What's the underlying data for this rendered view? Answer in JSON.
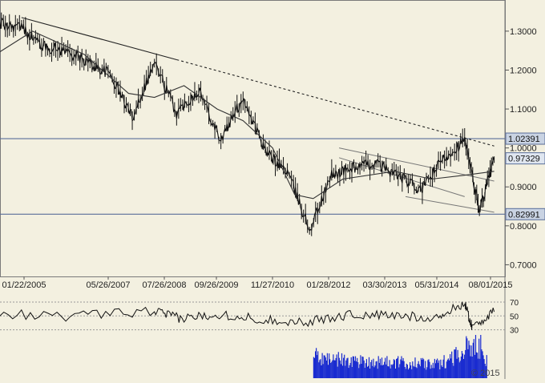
{
  "chart_data": {
    "type": "line",
    "main_panel": {
      "series": [
        {
          "x": [
            "2004-01",
            "2004-07",
            "2005-01",
            "2005-07",
            "2006-01",
            "2006-07",
            "2007-01",
            "2007-07",
            "2008-01",
            "2008-07",
            "2009-01",
            "2009-07",
            "2010-01",
            "2010-07",
            "2011-01",
            "2011-07",
            "2012-01",
            "2012-07",
            "2013-01",
            "2013-07",
            "2014-01",
            "2014-07",
            "2015-01",
            "2015-05",
            "2015-09"
          ],
          "y": [
            1.23,
            1.32,
            1.31,
            1.26,
            1.25,
            1.22,
            1.19,
            1.08,
            1.22,
            1.09,
            1.15,
            1.02,
            1.13,
            0.99,
            0.94,
            0.79,
            0.93,
            0.95,
            0.96,
            0.93,
            0.89,
            0.97,
            1.02,
            0.84,
            0.97
          ]
        },
        {
          "x": [
            "2004-06",
            "2005-04",
            "2006-06",
            "2007-06",
            "2008-01",
            "2008-09",
            "2009-06",
            "2010-01",
            "2010-09",
            "2011-03",
            "2011-08",
            "2012-04",
            "2013-06",
            "2014-04",
            "2015-01",
            "2015-09"
          ],
          "y": [
            1.24,
            1.3,
            1.24,
            1.14,
            1.13,
            1.16,
            1.1,
            1.07,
            1.0,
            0.88,
            0.87,
            0.92,
            0.94,
            0.92,
            0.93,
            0.94
          ]
        }
      ],
      "y_ticks": [
        "1.3000",
        "1.2000",
        "1.1000",
        "1.0000",
        "0.9000",
        "0.8000",
        "0.7000"
      ],
      "x_tick_labels": [
        "01/22/2005",
        "05/26/2007",
        "07/26/2008",
        "09/26/2009",
        "11/27/2010",
        "01/28/2012",
        "03/30/2013",
        "05/31/2014",
        "08/01/2015"
      ],
      "ylim": [
        0.67,
        1.38
      ],
      "price_labels": [
        {
          "value": 1.02391,
          "text": "1.02391"
        },
        {
          "value": 0.97329,
          "text": "0.97329"
        },
        {
          "value": 0.82991,
          "text": "0.82991"
        }
      ],
      "horizontal_lines": [
        1.02391,
        0.82991
      ],
      "trendline": {
        "from": [
          "2005-01",
          1.335
        ],
        "to": [
          "2015-09",
          1.005
        ],
        "solid_until": "2008-07"
      },
      "channel_lines": [
        {
          "from": [
            "2012-03",
            1.0
          ],
          "to": [
            "2015-09",
            0.915
          ]
        },
        {
          "from": [
            "2013-09",
            0.875
          ],
          "to": [
            "2015-09",
            0.835
          ]
        },
        {
          "from": [
            "2012-03",
            0.975
          ],
          "to": [
            "2015-01",
            0.875
          ]
        }
      ]
    },
    "oscillator_panel": {
      "y_ticks": [
        "70",
        "50",
        "30"
      ],
      "series": [
        {
          "x": [
            "2004-01",
            "2006-01",
            "2008-01",
            "2008-08",
            "2009-06",
            "2010-06",
            "2011-06",
            "2012-06",
            "2013-06",
            "2014-06",
            "2015-01",
            "2015-03",
            "2015-09"
          ],
          "y": [
            55,
            49,
            57,
            46,
            53,
            45,
            41,
            52,
            50,
            48,
            69,
            34,
            56
          ]
        }
      ],
      "ylim": [
        25,
        78
      ]
    },
    "volume_panel": {
      "start": "2011-08",
      "end": "2015-07",
      "series": [
        {
          "x": [
            "2011-08",
            "2012-06",
            "2013-06",
            "2014-06",
            "2015-01",
            "2015-06"
          ],
          "y": [
            0.55,
            0.45,
            0.4,
            0.35,
            0.75,
            0.9
          ]
        }
      ]
    },
    "watermark": "© 2015"
  }
}
